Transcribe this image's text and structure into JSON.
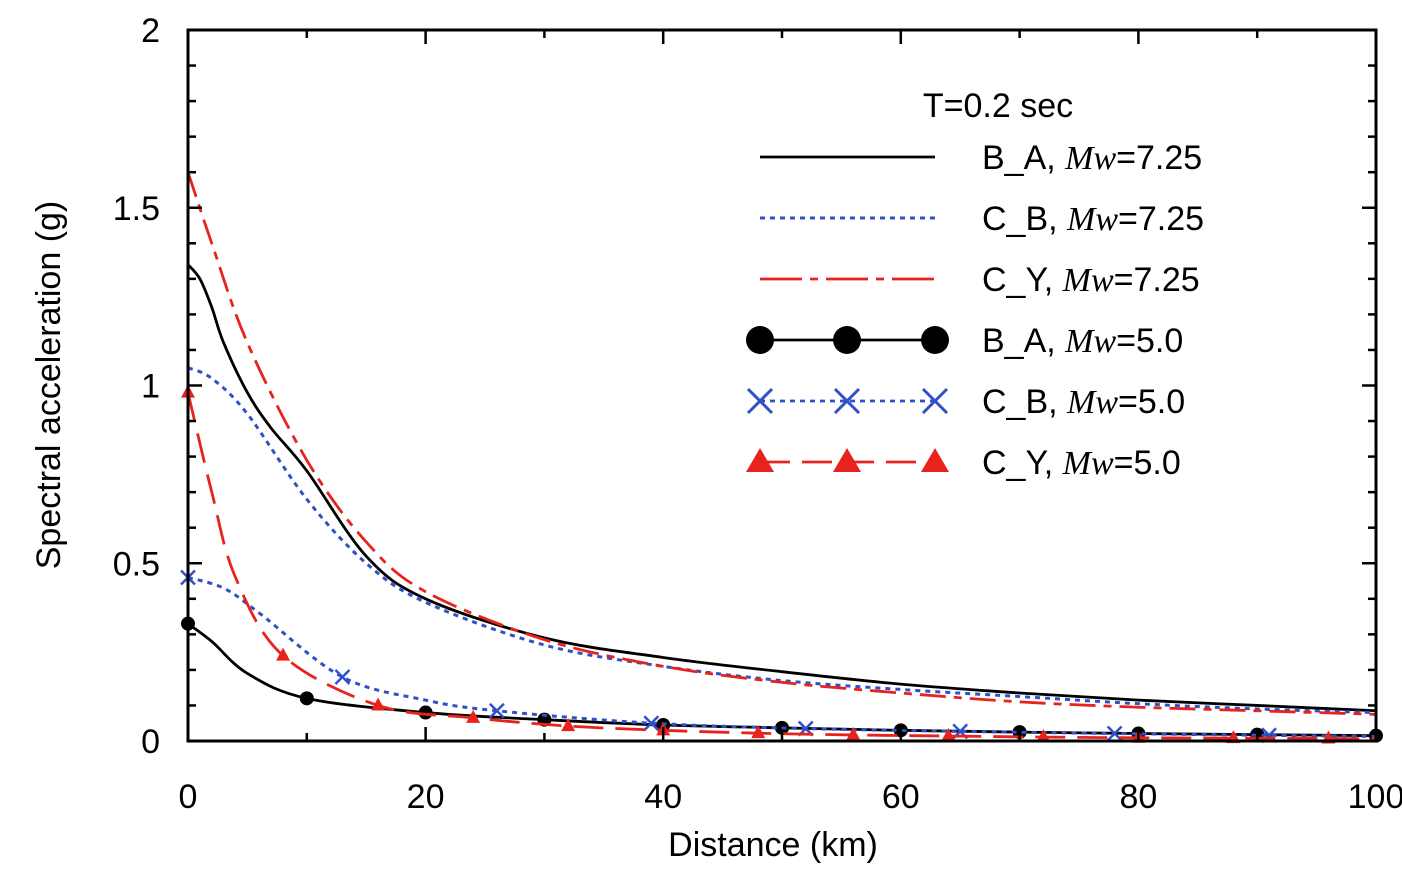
{
  "chart_data": {
    "type": "line",
    "xlabel": "Distance (km)",
    "ylabel": "Spectral acceleration (g)",
    "xlim": [
      0,
      100
    ],
    "ylim": [
      0,
      2
    ],
    "xticks": [
      0,
      20,
      40,
      60,
      80,
      100
    ],
    "yticks": [
      0,
      0.5,
      1,
      1.5,
      2
    ],
    "xtick_labels": [
      "0",
      "20",
      "40",
      "60",
      "80",
      "100"
    ],
    "ytick_labels": [
      "0",
      "0.5",
      "1",
      "1.5",
      "2"
    ],
    "grid": false,
    "legend_title": "T=0.2 sec",
    "legend_position": "top-right",
    "series": [
      {
        "name": "B_A, Mw=7.25",
        "label_prefix": "B_A, ",
        "label_mw": "Mw",
        "label_value": "=7.25",
        "color": "#000000",
        "dash": "solid",
        "marker": "none",
        "x": [
          0,
          1,
          2,
          3,
          5,
          7,
          10,
          15,
          20,
          30,
          40,
          50,
          60,
          70,
          80,
          90,
          100
        ],
        "y": [
          1.34,
          1.3,
          1.22,
          1.12,
          0.98,
          0.88,
          0.76,
          0.52,
          0.4,
          0.29,
          0.235,
          0.195,
          0.16,
          0.135,
          0.115,
          0.1,
          0.085
        ]
      },
      {
        "name": "C_B, Mw=7.25",
        "label_prefix": "C_B, ",
        "label_mw": "Mw",
        "label_value": "=7.25",
        "color": "#3050c8",
        "dash": "dotted",
        "marker": "none",
        "x": [
          0,
          2,
          5,
          10,
          15,
          20,
          30,
          40,
          50,
          60,
          70,
          80,
          90,
          100
        ],
        "y": [
          1.05,
          1.02,
          0.92,
          0.68,
          0.5,
          0.39,
          0.27,
          0.21,
          0.17,
          0.145,
          0.125,
          0.105,
          0.09,
          0.08
        ]
      },
      {
        "name": "C_Y, Mw=7.25",
        "label_prefix": "C_Y, ",
        "label_mw": "Mw",
        "label_value": "=7.25",
        "color": "#e8231e",
        "dash": "dashdot",
        "marker": "none",
        "x": [
          0,
          2,
          5,
          10,
          15,
          20,
          30,
          40,
          50,
          60,
          70,
          80,
          90,
          100
        ],
        "y": [
          1.6,
          1.4,
          1.12,
          0.79,
          0.56,
          0.42,
          0.285,
          0.21,
          0.165,
          0.135,
          0.11,
          0.095,
          0.085,
          0.075
        ]
      },
      {
        "name": "B_A, Mw=5.0",
        "label_prefix": "B_A, ",
        "label_mw": "Mw",
        "label_value": "=5.0",
        "color": "#000000",
        "dash": "solid",
        "marker": "circle",
        "x": [
          0,
          2,
          5,
          10,
          20,
          30,
          40,
          50,
          60,
          70,
          80,
          90,
          100
        ],
        "y": [
          0.33,
          0.28,
          0.19,
          0.12,
          0.08,
          0.06,
          0.045,
          0.037,
          0.03,
          0.025,
          0.021,
          0.018,
          0.015
        ],
        "marker_x": [
          0,
          10,
          20,
          30,
          40,
          50,
          60,
          70,
          80,
          90,
          100
        ]
      },
      {
        "name": "C_B, Mw=5.0",
        "label_prefix": "C_B, ",
        "label_mw": "Mw",
        "label_value": "=5.0",
        "color": "#3050c8",
        "dash": "dotted",
        "marker": "x",
        "x": [
          0,
          3,
          6,
          13,
          20,
          26,
          39,
          52,
          65,
          78,
          91,
          100
        ],
        "y": [
          0.46,
          0.43,
          0.36,
          0.18,
          0.115,
          0.085,
          0.05,
          0.035,
          0.027,
          0.021,
          0.016,
          0.013
        ],
        "marker_x": [
          0,
          13,
          26,
          39,
          52,
          65,
          78,
          91
        ]
      },
      {
        "name": "C_Y, Mw=5.0",
        "label_prefix": "C_Y, ",
        "label_mw": "Mw",
        "label_value": "=5.0",
        "color": "#e8231e",
        "dash": "longdash",
        "marker": "triangle",
        "x": [
          0,
          2,
          4,
          8,
          16,
          24,
          32,
          40,
          48,
          56,
          64,
          72,
          80,
          88,
          96,
          100
        ],
        "y": [
          0.98,
          0.7,
          0.46,
          0.24,
          0.1,
          0.065,
          0.042,
          0.03,
          0.022,
          0.017,
          0.014,
          0.011,
          0.009,
          0.008,
          0.007,
          0.006
        ],
        "marker_x": [
          0,
          8,
          16,
          24,
          32,
          40,
          48,
          56,
          64,
          72,
          80,
          88,
          96
        ]
      }
    ]
  }
}
